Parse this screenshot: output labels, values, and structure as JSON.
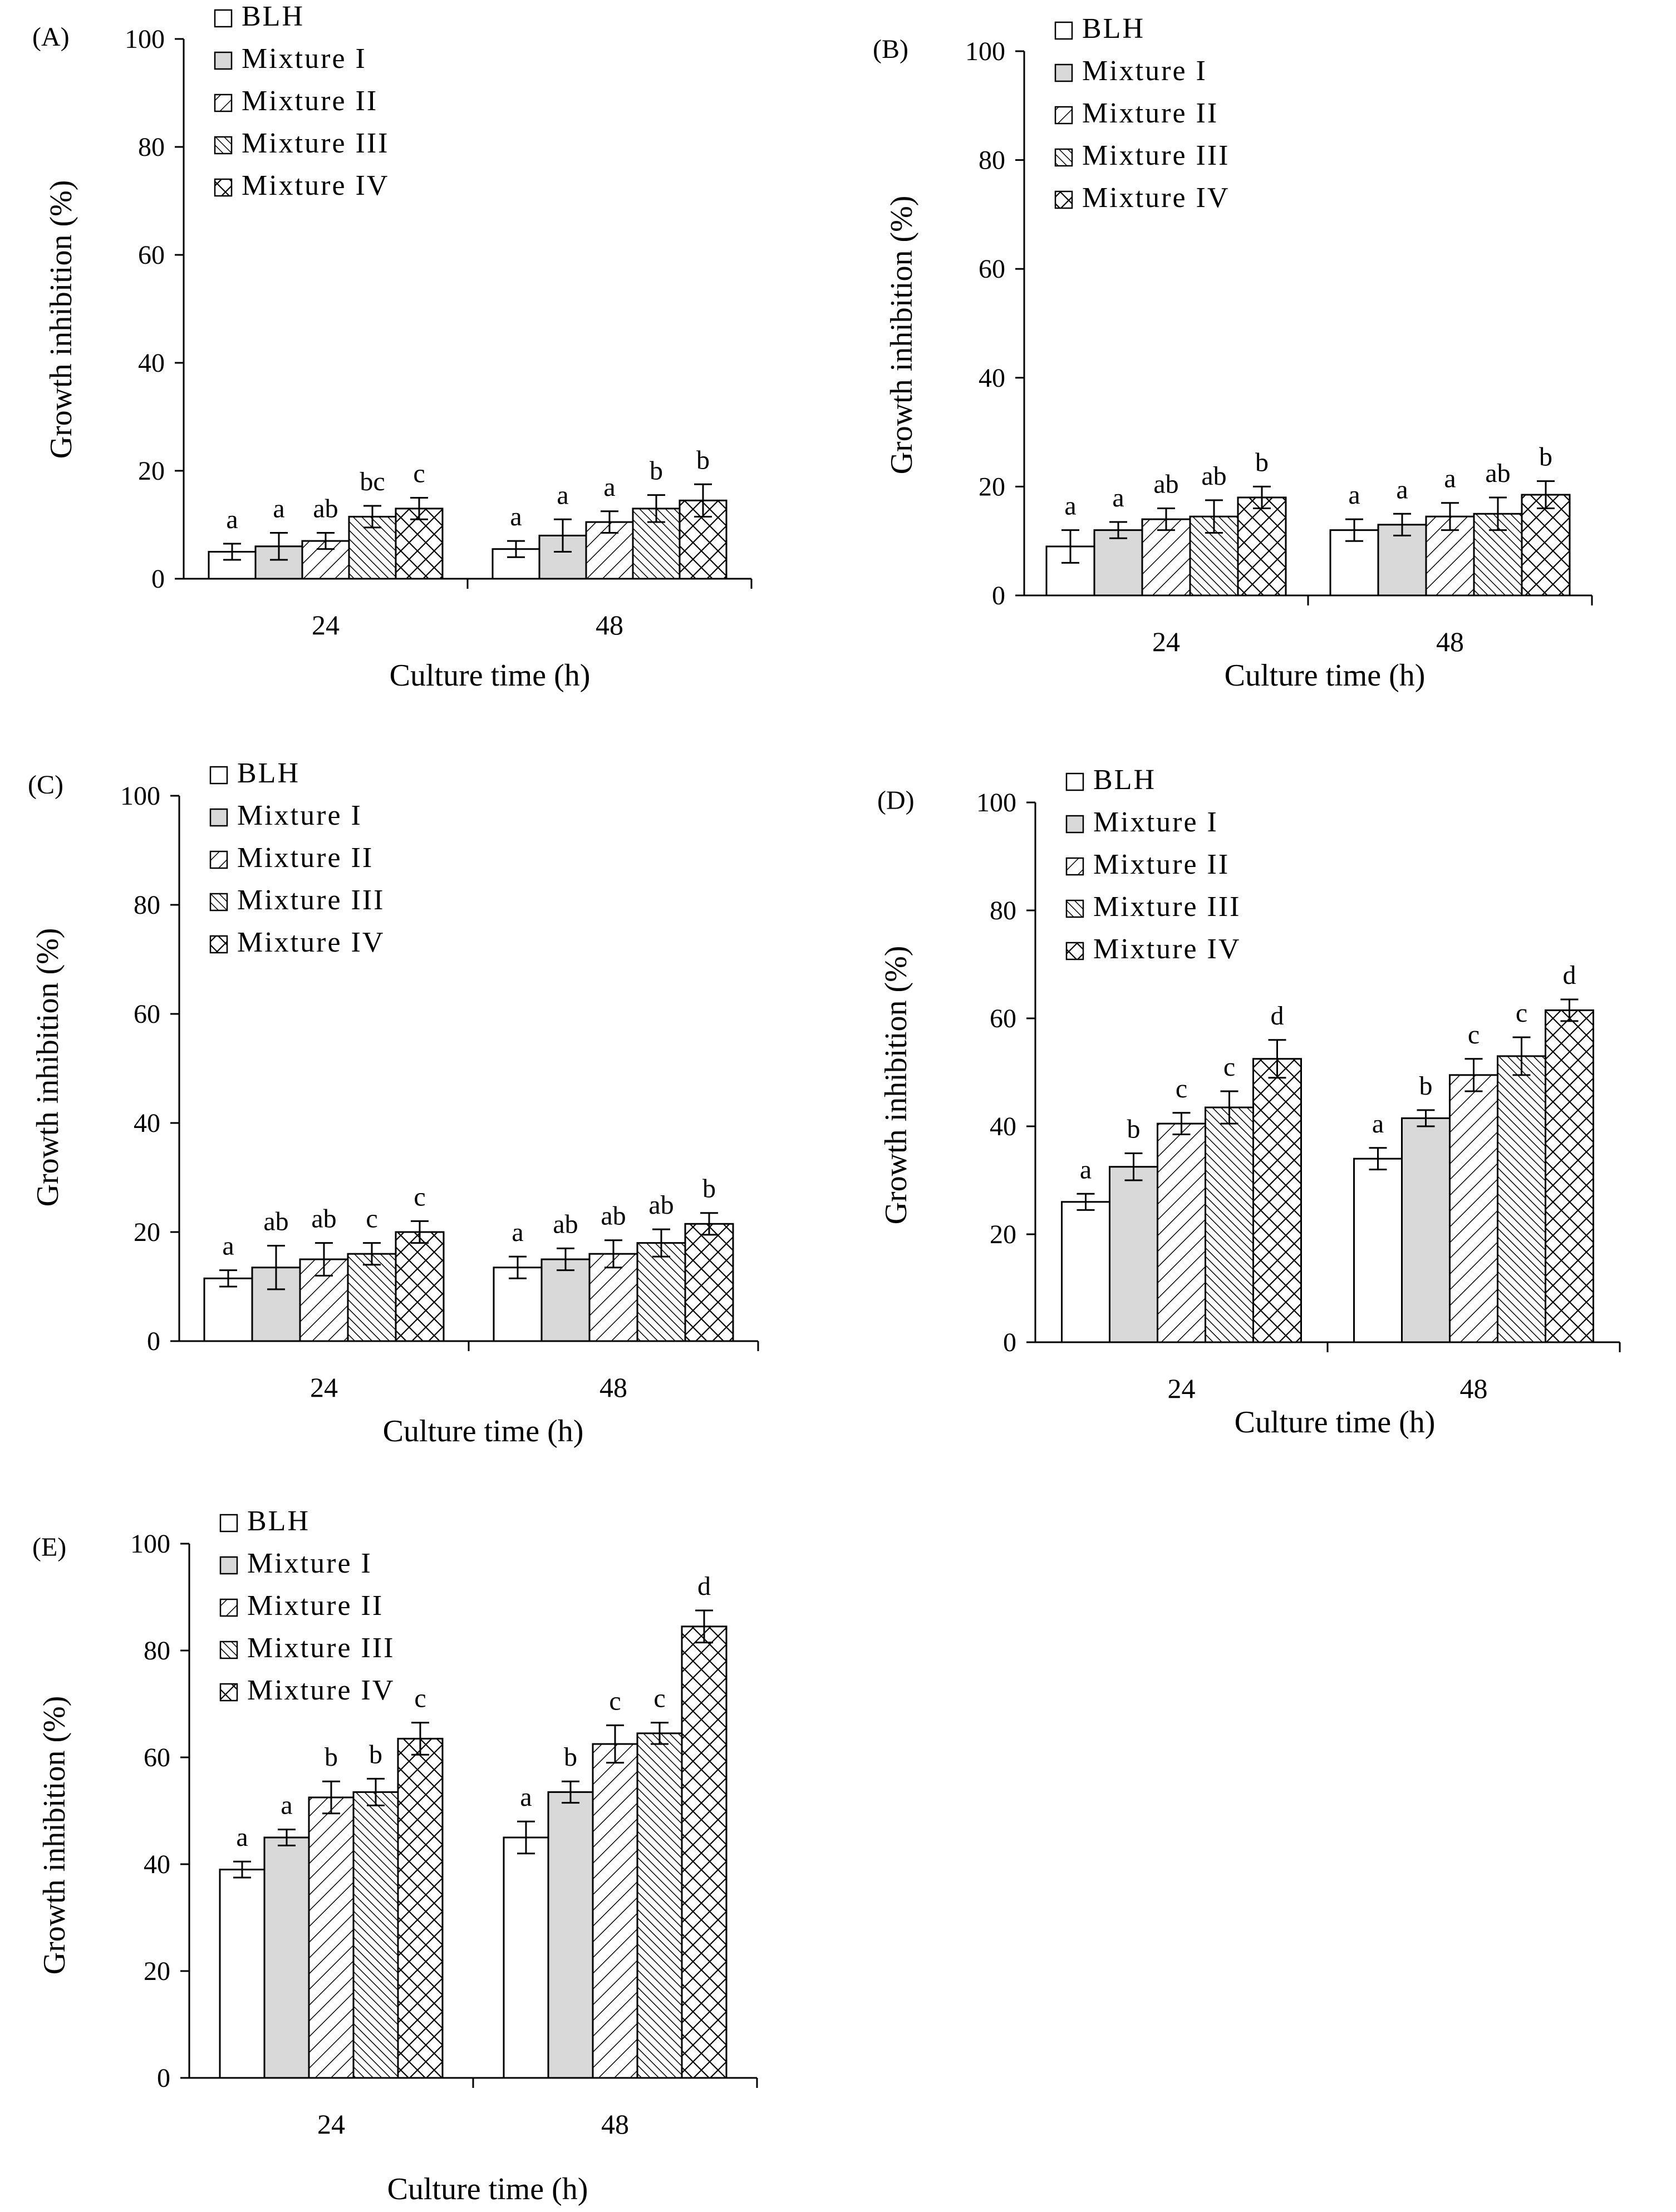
{
  "colors": {
    "ink": "#000000",
    "mixture_I_fill": "#d9d9d9",
    "background": "#ffffff"
  },
  "series_names": [
    "BLH",
    "Mixture I",
    "Mixture II",
    "Mixture III",
    "Mixture IV"
  ],
  "series_patterns": [
    "white",
    "gray",
    "diag-wide",
    "diag-dense",
    "crosshatch"
  ],
  "chart_data": [
    {
      "type": "bar",
      "panel_label": "(A)",
      "xlabel": "Culture time (h)",
      "ylabel": "Growth inhibition (%)",
      "ylim": [
        0,
        100
      ],
      "yticks": [
        "0",
        "20",
        "40",
        "60",
        "80",
        "100"
      ],
      "categories": [
        "24",
        "48"
      ],
      "legend_placement": "top-left",
      "series": [
        {
          "name": "BLH",
          "values": [
            5,
            5.5
          ],
          "errors": [
            1.5,
            1.5
          ],
          "letters": [
            "a",
            "a"
          ]
        },
        {
          "name": "Mixture I",
          "values": [
            6,
            8
          ],
          "errors": [
            2.5,
            3
          ],
          "letters": [
            "a",
            "a"
          ]
        },
        {
          "name": "Mixture II",
          "values": [
            7,
            10.5
          ],
          "errors": [
            1.5,
            2
          ],
          "letters": [
            "ab",
            "a"
          ]
        },
        {
          "name": "Mixture III",
          "values": [
            11.5,
            13
          ],
          "errors": [
            2,
            2.5
          ],
          "letters": [
            "bc",
            "b"
          ]
        },
        {
          "name": "Mixture IV",
          "values": [
            13,
            14.5
          ],
          "errors": [
            2,
            3
          ],
          "letters": [
            "c",
            "b"
          ]
        }
      ]
    },
    {
      "type": "bar",
      "panel_label": "(B)",
      "xlabel": "Culture time (h)",
      "ylabel": "Growth inhibition (%)",
      "ylim": [
        0,
        100
      ],
      "yticks": [
        "0",
        "20",
        "40",
        "60",
        "80",
        "100"
      ],
      "categories": [
        "24",
        "48"
      ],
      "legend_placement": "top-left",
      "series": [
        {
          "name": "BLH",
          "values": [
            9,
            12
          ],
          "errors": [
            3,
            2
          ],
          "letters": [
            "a",
            "a"
          ]
        },
        {
          "name": "Mixture I",
          "values": [
            12,
            13
          ],
          "errors": [
            1.5,
            2
          ],
          "letters": [
            "a",
            "a"
          ]
        },
        {
          "name": "Mixture II",
          "values": [
            14,
            14.5
          ],
          "errors": [
            2,
            2.5
          ],
          "letters": [
            "ab",
            "a"
          ]
        },
        {
          "name": "Mixture III",
          "values": [
            14.5,
            15
          ],
          "errors": [
            3,
            3
          ],
          "letters": [
            "ab",
            "ab"
          ]
        },
        {
          "name": "Mixture IV",
          "values": [
            18,
            18.5
          ],
          "errors": [
            2,
            2.5
          ],
          "letters": [
            "b",
            "b"
          ]
        }
      ]
    },
    {
      "type": "bar",
      "panel_label": "(C)",
      "xlabel": "Culture time (h)",
      "ylabel": "Growth inhibition (%)",
      "ylim": [
        0,
        100
      ],
      "yticks": [
        "0",
        "20",
        "40",
        "60",
        "80",
        "100"
      ],
      "categories": [
        "24",
        "48"
      ],
      "legend_placement": "top-left",
      "series": [
        {
          "name": "BLH",
          "values": [
            11.5,
            13.5
          ],
          "errors": [
            1.5,
            2
          ],
          "letters": [
            "a",
            "a"
          ]
        },
        {
          "name": "Mixture I",
          "values": [
            13.5,
            15
          ],
          "errors": [
            4,
            2
          ],
          "letters": [
            "ab",
            "ab"
          ]
        },
        {
          "name": "Mixture II",
          "values": [
            15,
            16
          ],
          "errors": [
            3,
            2.5
          ],
          "letters": [
            "ab",
            "ab"
          ]
        },
        {
          "name": "Mixture III",
          "values": [
            16,
            18
          ],
          "errors": [
            2,
            2.5
          ],
          "letters": [
            "c",
            "ab"
          ]
        },
        {
          "name": "Mixture IV",
          "values": [
            20,
            21.5
          ],
          "errors": [
            2,
            2
          ],
          "letters": [
            "c",
            "b"
          ]
        }
      ]
    },
    {
      "type": "bar",
      "panel_label": "(D)",
      "xlabel": "Culture time (h)",
      "ylabel": "Growth inhibition (%)",
      "ylim": [
        0,
        100
      ],
      "yticks": [
        "0",
        "20",
        "40",
        "60",
        "80",
        "100"
      ],
      "categories": [
        "24",
        "48"
      ],
      "legend_placement": "top-left",
      "series": [
        {
          "name": "BLH",
          "values": [
            26,
            34
          ],
          "errors": [
            1.5,
            2
          ],
          "letters": [
            "a",
            "a"
          ]
        },
        {
          "name": "Mixture I",
          "values": [
            32.5,
            41.5
          ],
          "errors": [
            2.5,
            1.5
          ],
          "letters": [
            "b",
            "b"
          ]
        },
        {
          "name": "Mixture II",
          "values": [
            40.5,
            49.5
          ],
          "errors": [
            2,
            3
          ],
          "letters": [
            "c",
            "c"
          ]
        },
        {
          "name": "Mixture III",
          "values": [
            43.5,
            53
          ],
          "errors": [
            3,
            3.5
          ],
          "letters": [
            "c",
            "c"
          ]
        },
        {
          "name": "Mixture IV",
          "values": [
            52.5,
            61.5
          ],
          "errors": [
            3.5,
            2
          ],
          "letters": [
            "d",
            "d"
          ]
        }
      ]
    },
    {
      "type": "bar",
      "panel_label": "(E)",
      "xlabel": "Culture time (h)",
      "ylabel": "Growth inhibition (%)",
      "ylim": [
        0,
        100
      ],
      "yticks": [
        "0",
        "20",
        "40",
        "60",
        "80",
        "100"
      ],
      "categories": [
        "24",
        "48"
      ],
      "legend_placement": "top-left",
      "series": [
        {
          "name": "BLH",
          "values": [
            39,
            45
          ],
          "errors": [
            1.5,
            3
          ],
          "letters": [
            "a",
            "a"
          ]
        },
        {
          "name": "Mixture I",
          "values": [
            45,
            53.5
          ],
          "errors": [
            1.5,
            2
          ],
          "letters": [
            "a",
            "b"
          ]
        },
        {
          "name": "Mixture II",
          "values": [
            52.5,
            62.5
          ],
          "errors": [
            3,
            3.5
          ],
          "letters": [
            "b",
            "c"
          ]
        },
        {
          "name": "Mixture III",
          "values": [
            53.5,
            64.5
          ],
          "errors": [
            2.5,
            2
          ],
          "letters": [
            "b",
            "c"
          ]
        },
        {
          "name": "Mixture IV",
          "values": [
            63.5,
            84.5
          ],
          "errors": [
            3,
            3
          ],
          "letters": [
            "c",
            "d"
          ]
        }
      ]
    }
  ]
}
